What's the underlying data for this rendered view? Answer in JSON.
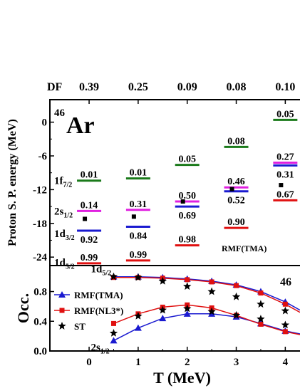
{
  "chart_data": [
    {
      "type": "level-diagram",
      "nucleus": {
        "mass": "46",
        "symbol": "Ar"
      },
      "model_label": "RMF(TMA)",
      "ylabel": "Proton S. P. energy (MeV)",
      "ylim": [
        -25.5,
        4
      ],
      "yticks": [
        "0",
        "-6",
        "-12",
        "-18",
        "-24"
      ],
      "ytick_values": [
        0,
        -6,
        -12,
        -18,
        -24
      ],
      "top_axis": {
        "label": "DF",
        "values": [
          "0.39",
          "0.25",
          "0.09",
          "0.08",
          "0.10"
        ]
      },
      "temperatures": [
        0,
        1,
        2,
        3,
        4
      ],
      "orbital_labels": [
        {
          "name": "1f7/2",
          "main": "1f",
          "sub": "7/2",
          "y": -10.4
        },
        {
          "name": "2s1/2",
          "main": "2s",
          "sub": "1/2",
          "y": -15.8
        },
        {
          "name": "1d3/2",
          "main": "1d",
          "sub": "3/2",
          "y": -19.8
        },
        {
          "name": "1d5/2",
          "main": "1d",
          "sub": "5/2",
          "y": -24.9
        }
      ],
      "levels": [
        {
          "orbital": "1f7/2",
          "color": "#1a7a1a",
          "energies": [
            -10.4,
            -10.0,
            -7.6,
            -4.4,
            0.4
          ],
          "occupancy": [
            "0.01",
            "0.01",
            "0.05",
            "0.08",
            "0.05"
          ]
        },
        {
          "orbital": "2s1/2",
          "color": "#e020e0",
          "energies": [
            -15.8,
            -15.6,
            -14.1,
            -11.6,
            -7.2
          ],
          "occupancy": [
            "0.14",
            "0.31",
            "0.50",
            "0.46",
            "0.27"
          ]
        },
        {
          "orbital": "1d3/2",
          "color": "#1a1ad0",
          "energies": [
            -19.3,
            -18.6,
            -15.0,
            -12.3,
            -7.7
          ],
          "occupancy": [
            "0.92",
            "0.84",
            "0.69",
            "0.52",
            "0.31"
          ]
        },
        {
          "orbital": "1d5/2",
          "color": "#e01010",
          "energies": [
            -25.1,
            -24.6,
            -21.9,
            -18.8,
            -13.9
          ],
          "occupancy": [
            "0.99",
            "0.99",
            "0.98",
            "0.90",
            "0.67"
          ]
        }
      ],
      "fermi_markers": [
        {
          "t": 0,
          "e": -17.2
        },
        {
          "t": 1,
          "e": -16.8
        },
        {
          "t": 2,
          "e": -14.1
        },
        {
          "t": 3,
          "e": -11.9
        },
        {
          "t": 4,
          "e": -11.2
        }
      ]
    },
    {
      "type": "line",
      "ylabel": "Occ.",
      "xlabel": "T (MeV)",
      "xlim": [
        -0.8,
        4.3
      ],
      "ylim": [
        0,
        1.15
      ],
      "xticks": [
        "0",
        "1",
        "2",
        "3",
        "4"
      ],
      "xtick_values": [
        0,
        1,
        2,
        3,
        4
      ],
      "yticks": [
        "0.0",
        "0.4",
        "0.8"
      ],
      "ytick_values": [
        0,
        0.4,
        0.8
      ],
      "nucleus_mass": "46",
      "curve_labels": [
        {
          "main": "1d",
          "sub": "5/2",
          "x": 0.5,
          "y": 1.02
        },
        {
          "main": "2s",
          "sub": "1/2",
          "x": 0.5,
          "y": 0.16
        }
      ],
      "series": [
        {
          "name": "RMF(TMA)",
          "color": "#1a1ad0",
          "marker": "triangle",
          "x": [
            0.5,
            1.0,
            1.5,
            2.0,
            2.5,
            3.0,
            3.5,
            4.0,
            4.3
          ],
          "curves": [
            [
              1.0,
              1.0,
              0.99,
              0.97,
              0.94,
              0.89,
              0.8,
              0.66,
              0.55
            ],
            [
              0.14,
              0.31,
              0.44,
              0.5,
              0.5,
              0.46,
              0.37,
              0.27,
              0.23
            ]
          ]
        },
        {
          "name": "RMF(NL3*)",
          "color": "#e01010",
          "marker": "square",
          "x": [
            0.5,
            1.0,
            1.5,
            2.0,
            2.5,
            3.0,
            3.5,
            4.0,
            4.3
          ],
          "curves": [
            [
              0.99,
              0.99,
              0.98,
              0.96,
              0.93,
              0.88,
              0.78,
              0.63,
              0.52
            ],
            [
              0.37,
              0.5,
              0.59,
              0.62,
              0.58,
              0.48,
              0.36,
              0.26,
              0.22
            ]
          ]
        },
        {
          "name": "ST",
          "color": "#000000",
          "marker": "star",
          "x": [
            0.5,
            1.0,
            1.5,
            2.0,
            2.5,
            3.0,
            3.5,
            4.0
          ],
          "curves": [
            [
              1.0,
              0.99,
              0.94,
              0.87,
              0.8,
              0.73,
              0.63,
              0.54
            ],
            [
              0.24,
              0.47,
              0.55,
              0.57,
              0.53,
              0.48,
              0.43,
              0.35
            ]
          ]
        }
      ]
    }
  ]
}
